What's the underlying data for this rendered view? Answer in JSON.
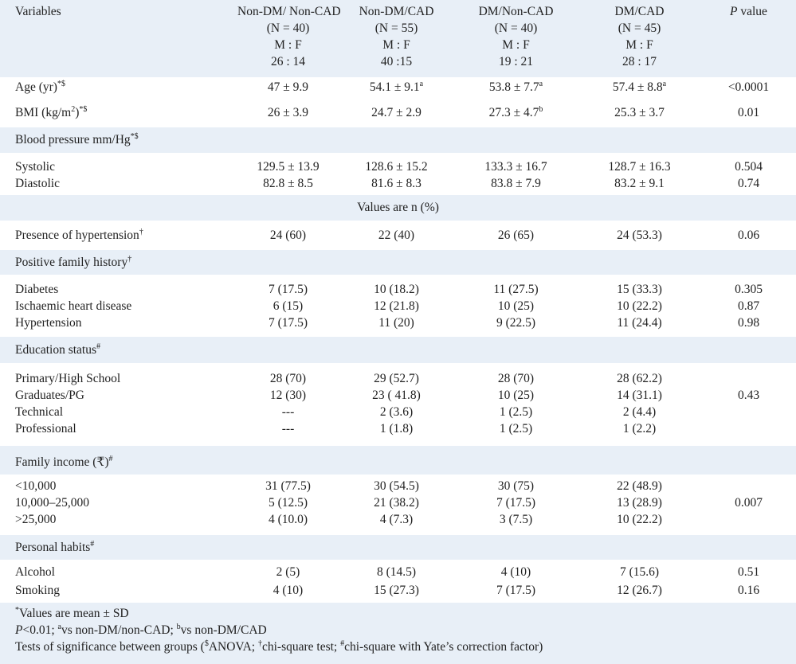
{
  "header": {
    "variables": "Variables",
    "groups": [
      {
        "name": "Non-DM/ Non-CAD",
        "n": "(N = 40)",
        "mf": "M : F",
        "ratio": "26 : 14"
      },
      {
        "name": "Non-DM/CAD",
        "n": "(N = 55)",
        "mf": "M : F",
        "ratio": "40 :15"
      },
      {
        "name": "DM/Non-CAD",
        "n": "(N = 40)",
        "mf": "M : F",
        "ratio": "19 : 21"
      },
      {
        "name": "DM/CAD",
        "n": "(N = 45)",
        "mf": "M : F",
        "ratio": "28 : 17"
      }
    ],
    "pvalue_italic": "P",
    "pvalue_rest": " value"
  },
  "age": {
    "label": "Age (yr)",
    "sup": "*$",
    "v": [
      "47 ± 9.9",
      "54.1 ± 9.1",
      "53.8 ± 7.7",
      "57.4 ± 8.8"
    ],
    "sups": [
      "",
      "a",
      "a",
      "a"
    ],
    "p": "<0.0001"
  },
  "bmi": {
    "label_pre": "BMI (kg/m",
    "label_sq": "2",
    "label_post": ")",
    "sup": "*$",
    "v": [
      "26 ± 3.9",
      "24.7 ± 2.9",
      "27.3 ± 4.7",
      "25.3 ± 3.7"
    ],
    "sups": [
      "",
      "",
      "b",
      ""
    ],
    "p": "0.01"
  },
  "bp": {
    "label": "Blood pressure mm/Hg",
    "sup": "*$"
  },
  "systolic": {
    "label": "Systolic",
    "v": [
      "129.5 ± 13.9",
      "128.6 ± 15.2",
      "133.3 ± 16.7",
      "128.7 ± 16.3"
    ],
    "p": "0.504"
  },
  "diastolic": {
    "label": "Diastolic",
    "v": [
      "82.8 ± 8.5",
      "81.6 ± 8.3",
      "83.8 ± 7.9",
      "83.2 ± 9.1"
    ],
    "p": "0.74"
  },
  "values_note": "Values are n (%)",
  "hypertension": {
    "label": "Presence of hypertension",
    "sup": "†",
    "v": [
      "24 (60)",
      "22 (40)",
      "26 (65)",
      "24 (53.3)"
    ],
    "p": "0.06"
  },
  "family_history": {
    "label": "Positive family history",
    "sup": "†"
  },
  "fh_rows": [
    {
      "label": "Diabetes",
      "v": [
        "7 (17.5)",
        "10 (18.2)",
        "11 (27.5)",
        "15 (33.3)"
      ],
      "p": "0.305"
    },
    {
      "label": "Ischaemic heart disease",
      "v": [
        "6 (15)",
        "12 (21.8)",
        "10 (25)",
        "10 (22.2)"
      ],
      "p": "0.87"
    },
    {
      "label": "Hypertension",
      "v": [
        "7 (17.5)",
        "11 (20)",
        "9 (22.5)",
        "11 (24.4)"
      ],
      "p": "0.98"
    }
  ],
  "education": {
    "label": "Education status",
    "sup": "#"
  },
  "edu_rows": [
    {
      "label": "Primary/High School",
      "v": [
        "28 (70)",
        "29 (52.7)",
        "28 (70)",
        "28 (62.2)"
      ],
      "p": ""
    },
    {
      "label": "Graduates/PG",
      "v": [
        "12 (30)",
        "23 ( 41.8)",
        "10 (25)",
        "14 (31.1)"
      ],
      "p": "0.43"
    },
    {
      "label": "Technical",
      "v": [
        "---",
        "2 (3.6)",
        "1 (2.5)",
        "2 (4.4)"
      ],
      "p": ""
    },
    {
      "label": "Professional",
      "v": [
        "---",
        "1 (1.8)",
        "1 (2.5)",
        "1 (2.2)"
      ],
      "p": ""
    }
  ],
  "income": {
    "label": "Family income (₹)",
    "sup": "#"
  },
  "income_rows": [
    {
      "label": "<10,000",
      "v": [
        "31 (77.5)",
        "30 (54.5)",
        "30 (75)",
        "22 (48.9)"
      ],
      "p": ""
    },
    {
      "label": "10,000–25,000",
      "v": [
        "5 (12.5)",
        "21 (38.2)",
        "7 (17.5)",
        "13 (28.9)"
      ],
      "p": "0.007"
    },
    {
      "label": ">25,000",
      "v": [
        "4 (10.0)",
        "4 (7.3)",
        "3 (7.5)",
        "10 (22.2)"
      ],
      "p": ""
    }
  ],
  "habits": {
    "label": "Personal habits",
    "sup": "#"
  },
  "habit_rows": [
    {
      "label": "Alcohol",
      "v": [
        "2 (5)",
        "8 (14.5)",
        "4 (10)",
        "7 (15.6)"
      ],
      "p": "0.51"
    },
    {
      "label": "Smoking",
      "v": [
        "4 (10)",
        "15 (27.3)",
        "7 (17.5)",
        "12 (26.7)"
      ],
      "p": "0.16"
    }
  ],
  "footnotes": {
    "f1_sup": "*",
    "f1": "Values are mean ± SD",
    "f2_p": "P",
    "f2_a": "<0.01; ",
    "f2_sa": "a",
    "f2_b": "vs non-DM/non-CAD; ",
    "f2_sb": "b",
    "f2_c": "vs non-DM/CAD",
    "f3_a": "Tests of significance between groups (",
    "f3_s1": "$",
    "f3_b": "ANOVA; ",
    "f3_s2": "†",
    "f3_c": "chi-square test; ",
    "f3_s3": "#",
    "f3_d": "chi-square with Yate’s correction factor)"
  }
}
